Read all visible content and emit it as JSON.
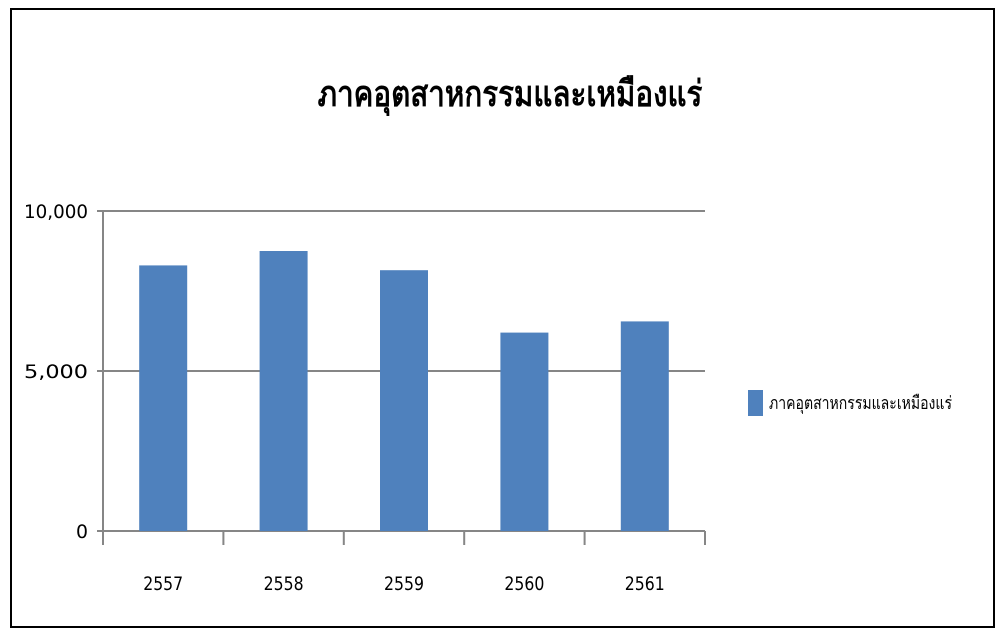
{
  "chart_data": {
    "type": "bar",
    "title": "ภาคอุตสาหกรรมและเหมืองแร่",
    "categories": [
      "2557",
      "2558",
      "2559",
      "2560",
      "2561"
    ],
    "series": [
      {
        "name": "ภาคอุตสาหกรรมและเหมืองแร่",
        "values": [
          8300,
          8750,
          8150,
          6200,
          6550
        ]
      }
    ],
    "ylim": [
      0,
      10000
    ],
    "yticks": [
      {
        "value": 0,
        "label": "0"
      },
      {
        "value": 5000,
        "label": "5,000"
      },
      {
        "value": 10000,
        "label": "10,000"
      }
    ],
    "grid": true,
    "legend_position": "right",
    "colors": {
      "bar": "#4f81bd",
      "grid": "#868686",
      "axis": "#868686"
    }
  }
}
